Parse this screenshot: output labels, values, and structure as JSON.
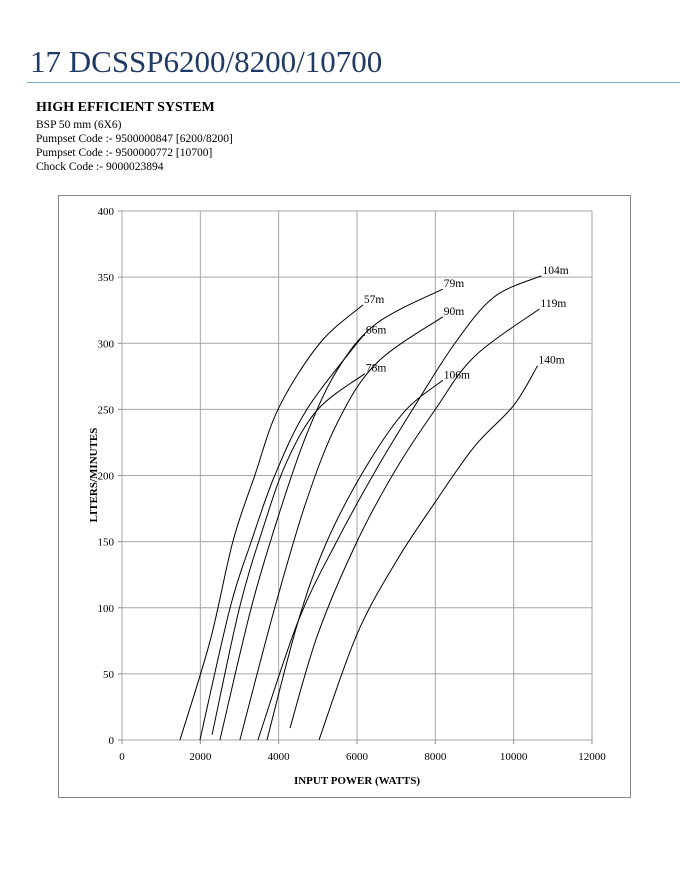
{
  "header": {
    "title": "17 DCSSP6200/8200/10700",
    "subtitle": "HIGH EFFICIENT SYSTEM",
    "lines": [
      "BSP 50 mm (6X6)",
      "Pumpset Code :- 9500000847 [6200/8200]",
      "Pumpset Code :- 9500000772 [10700]",
      "Chock Code :-  9000023894"
    ]
  },
  "chart_data": {
    "type": "line",
    "title": "",
    "xlabel": "INPUT POWER (WATTS)",
    "ylabel": "LITERS/MINUTES",
    "xlim": [
      0,
      12000
    ],
    "ylim": [
      0,
      400
    ],
    "xticks": [
      0,
      2000,
      4000,
      6000,
      8000,
      10000,
      12000
    ],
    "yticks": [
      0,
      50,
      100,
      150,
      200,
      250,
      300,
      350,
      400
    ],
    "grid": true,
    "series": [
      {
        "name": "57m",
        "points": [
          [
            1480,
            0
          ],
          [
            2250,
            75
          ],
          [
            2830,
            150
          ],
          [
            3390,
            200
          ],
          [
            4000,
            251
          ],
          [
            5050,
            300
          ],
          [
            6150,
            329
          ]
        ]
      },
      {
        "name": "66m",
        "points": [
          [
            1990,
            0
          ],
          [
            2760,
            100
          ],
          [
            3300,
            150
          ],
          [
            3900,
            200
          ],
          [
            4720,
            250
          ],
          [
            6000,
            300
          ],
          [
            6200,
            306
          ]
        ]
      },
      {
        "name": "78m",
        "points": [
          [
            2300,
            4
          ],
          [
            3000,
            100
          ],
          [
            3600,
            160
          ],
          [
            4200,
            210
          ],
          [
            5000,
            250
          ],
          [
            6200,
            277
          ]
        ]
      },
      {
        "name": "79m",
        "points": [
          [
            2500,
            0
          ],
          [
            3300,
            100
          ],
          [
            4000,
            170
          ],
          [
            4700,
            230
          ],
          [
            5500,
            280
          ],
          [
            6500,
            315
          ],
          [
            8190,
            341
          ]
        ]
      },
      {
        "name": "90m",
        "points": [
          [
            3010,
            0
          ],
          [
            3900,
            100
          ],
          [
            4700,
            180
          ],
          [
            5500,
            240
          ],
          [
            6500,
            285
          ],
          [
            8190,
            320
          ]
        ]
      },
      {
        "name": "104m",
        "points": [
          [
            3470,
            0
          ],
          [
            4500,
            90
          ],
          [
            5480,
            150
          ],
          [
            6500,
            205
          ],
          [
            7420,
            250
          ],
          [
            8500,
            300
          ],
          [
            9500,
            335
          ],
          [
            10710,
            351
          ]
        ]
      },
      {
        "name": "106m",
        "points": [
          [
            3700,
            0
          ],
          [
            4500,
            90
          ],
          [
            5230,
            150
          ],
          [
            6200,
            205
          ],
          [
            7200,
            248
          ],
          [
            8190,
            272
          ]
        ]
      },
      {
        "name": "119m",
        "points": [
          [
            4290,
            9
          ],
          [
            5000,
            80
          ],
          [
            6000,
            150
          ],
          [
            7000,
            205
          ],
          [
            8000,
            250
          ],
          [
            9000,
            290
          ],
          [
            10660,
            326
          ]
        ]
      },
      {
        "name": "140m",
        "points": [
          [
            5030,
            0
          ],
          [
            6000,
            80
          ],
          [
            7000,
            135
          ],
          [
            8000,
            180
          ],
          [
            9000,
            222
          ],
          [
            10000,
            253
          ],
          [
            10610,
            283
          ]
        ]
      }
    ]
  }
}
